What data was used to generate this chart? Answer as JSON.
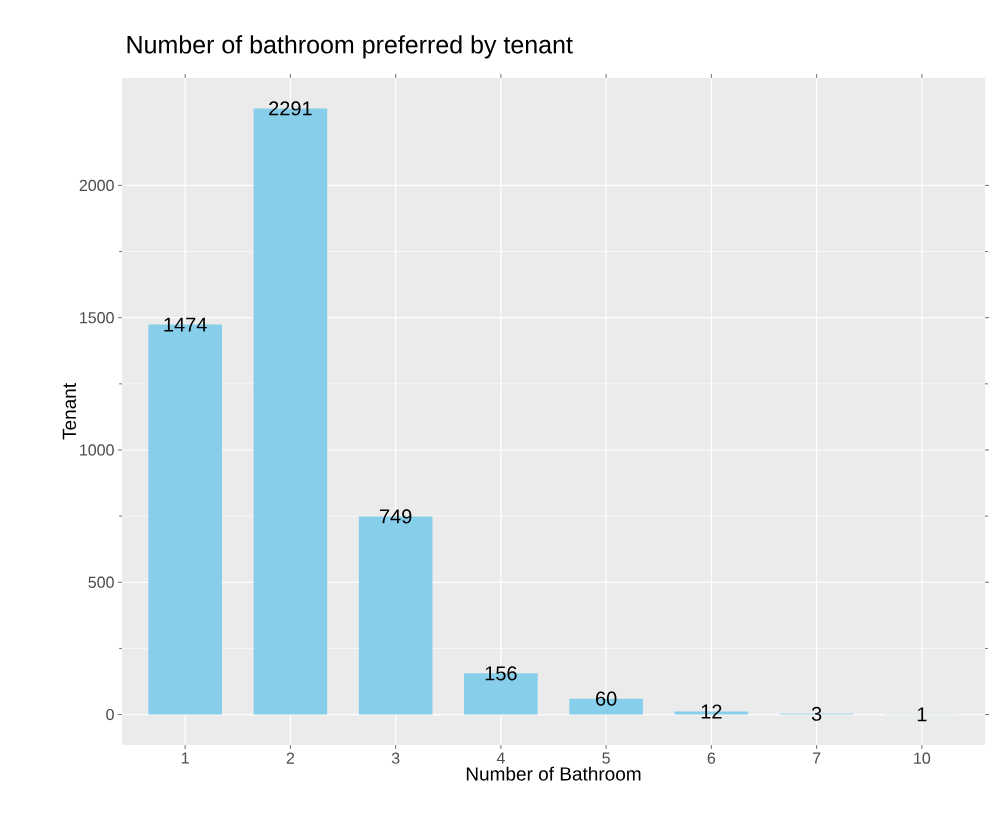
{
  "chart_data": {
    "type": "bar",
    "title": "Number of bathroom preferred by tenant",
    "xlabel": "Number of Bathroom",
    "ylabel": "Tenant",
    "categories": [
      "1",
      "2",
      "3",
      "4",
      "5",
      "6",
      "7",
      "10"
    ],
    "values": [
      1474,
      2291,
      749,
      156,
      60,
      12,
      3,
      1
    ],
    "color": "#87ceeb",
    "ylim": [
      -115,
      2406
    ],
    "yticks": [
      0,
      500,
      1000,
      1500,
      2000
    ],
    "grid": true,
    "data_labels": true
  }
}
